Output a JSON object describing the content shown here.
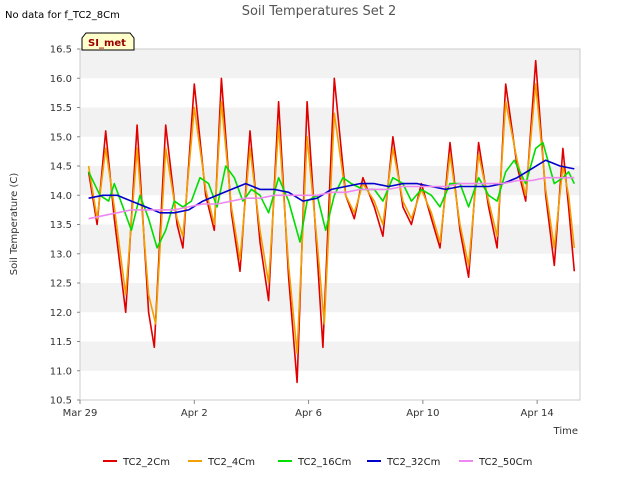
{
  "note": "No data for f_TC2_8Cm",
  "chart_data": {
    "type": "line",
    "title": "Soil Temperatures Set 2",
    "xlabel": "Time",
    "ylabel": "Soil Temperature (C)",
    "badge": "SI_met",
    "ylim": [
      10.5,
      16.5
    ],
    "yticks": [
      "10.5",
      "11.0",
      "11.5",
      "12.0",
      "12.5",
      "13.0",
      "13.5",
      "14.0",
      "14.5",
      "15.0",
      "15.5",
      "16.0",
      "16.5"
    ],
    "x_range_days": [
      0,
      17.5
    ],
    "xticks": [
      {
        "day": 0,
        "label": "Mar 29"
      },
      {
        "day": 4,
        "label": "Apr 2"
      },
      {
        "day": 8,
        "label": "Apr 6"
      },
      {
        "day": 12,
        "label": "Apr 10"
      },
      {
        "day": 16,
        "label": "Apr 14"
      }
    ],
    "grid": "horizontal bands",
    "legend_position": "bottom",
    "series": [
      {
        "name": "TC2_2Cm",
        "color": "#e00000",
        "points": [
          [
            0.3,
            14.4
          ],
          [
            0.6,
            13.5
          ],
          [
            0.9,
            15.1
          ],
          [
            1.2,
            13.6
          ],
          [
            1.6,
            12.0
          ],
          [
            2.0,
            15.2
          ],
          [
            2.4,
            12.0
          ],
          [
            2.6,
            11.4
          ],
          [
            3.0,
            15.2
          ],
          [
            3.4,
            13.5
          ],
          [
            3.6,
            13.1
          ],
          [
            4.0,
            15.9
          ],
          [
            4.4,
            14.0
          ],
          [
            4.7,
            13.4
          ],
          [
            4.95,
            16.0
          ],
          [
            5.3,
            13.7
          ],
          [
            5.6,
            12.7
          ],
          [
            5.95,
            15.1
          ],
          [
            6.3,
            13.2
          ],
          [
            6.6,
            12.2
          ],
          [
            6.95,
            15.6
          ],
          [
            7.3,
            12.6
          ],
          [
            7.6,
            10.8
          ],
          [
            7.95,
            15.6
          ],
          [
            8.3,
            13.0
          ],
          [
            8.5,
            11.4
          ],
          [
            8.9,
            16.0
          ],
          [
            9.3,
            14.0
          ],
          [
            9.6,
            13.6
          ],
          [
            9.9,
            14.3
          ],
          [
            10.3,
            13.8
          ],
          [
            10.6,
            13.3
          ],
          [
            10.95,
            15.0
          ],
          [
            11.3,
            13.8
          ],
          [
            11.6,
            13.5
          ],
          [
            11.95,
            14.2
          ],
          [
            12.3,
            13.6
          ],
          [
            12.6,
            13.1
          ],
          [
            12.95,
            14.9
          ],
          [
            13.3,
            13.4
          ],
          [
            13.6,
            12.6
          ],
          [
            13.95,
            14.9
          ],
          [
            14.3,
            13.8
          ],
          [
            14.6,
            13.1
          ],
          [
            14.9,
            15.9
          ],
          [
            15.3,
            14.5
          ],
          [
            15.6,
            13.9
          ],
          [
            15.95,
            16.3
          ],
          [
            16.3,
            14.0
          ],
          [
            16.6,
            12.8
          ],
          [
            16.9,
            14.8
          ],
          [
            17.1,
            13.8
          ],
          [
            17.3,
            12.7
          ]
        ]
      },
      {
        "name": "TC2_4Cm",
        "color": "#f0a000",
        "points": [
          [
            0.3,
            14.5
          ],
          [
            0.6,
            13.6
          ],
          [
            0.9,
            14.8
          ],
          [
            1.2,
            13.8
          ],
          [
            1.6,
            12.3
          ],
          [
            2.0,
            14.8
          ],
          [
            2.4,
            12.3
          ],
          [
            2.65,
            11.8
          ],
          [
            3.0,
            14.8
          ],
          [
            3.4,
            13.6
          ],
          [
            3.6,
            13.3
          ],
          [
            4.0,
            15.5
          ],
          [
            4.4,
            14.1
          ],
          [
            4.7,
            13.5
          ],
          [
            4.95,
            15.6
          ],
          [
            5.3,
            13.8
          ],
          [
            5.6,
            12.9
          ],
          [
            5.95,
            14.8
          ],
          [
            6.3,
            13.4
          ],
          [
            6.6,
            12.5
          ],
          [
            6.95,
            15.2
          ],
          [
            7.3,
            12.8
          ],
          [
            7.6,
            11.3
          ],
          [
            7.95,
            15.0
          ],
          [
            8.3,
            13.2
          ],
          [
            8.55,
            11.8
          ],
          [
            8.9,
            15.4
          ],
          [
            9.3,
            14.0
          ],
          [
            9.6,
            13.7
          ],
          [
            9.9,
            14.2
          ],
          [
            10.3,
            13.9
          ],
          [
            10.6,
            13.5
          ],
          [
            10.95,
            14.8
          ],
          [
            11.3,
            13.9
          ],
          [
            11.6,
            13.6
          ],
          [
            11.95,
            14.1
          ],
          [
            12.3,
            13.7
          ],
          [
            12.6,
            13.2
          ],
          [
            12.95,
            14.7
          ],
          [
            13.3,
            13.5
          ],
          [
            13.6,
            12.8
          ],
          [
            13.95,
            14.7
          ],
          [
            14.3,
            13.9
          ],
          [
            14.6,
            13.3
          ],
          [
            14.9,
            15.6
          ],
          [
            15.3,
            14.6
          ],
          [
            15.6,
            14.0
          ],
          [
            15.95,
            15.9
          ],
          [
            16.3,
            14.1
          ],
          [
            16.6,
            13.1
          ],
          [
            16.9,
            14.5
          ],
          [
            17.1,
            14.0
          ],
          [
            17.3,
            13.1
          ]
        ]
      },
      {
        "name": "TC2_16Cm",
        "color": "#00dd00",
        "points": [
          [
            0.3,
            14.4
          ],
          [
            0.7,
            14.0
          ],
          [
            1.0,
            13.9
          ],
          [
            1.2,
            14.2
          ],
          [
            1.5,
            13.8
          ],
          [
            1.8,
            13.4
          ],
          [
            2.1,
            14.0
          ],
          [
            2.4,
            13.6
          ],
          [
            2.7,
            13.1
          ],
          [
            3.0,
            13.4
          ],
          [
            3.3,
            13.9
          ],
          [
            3.6,
            13.8
          ],
          [
            3.9,
            13.9
          ],
          [
            4.2,
            14.3
          ],
          [
            4.5,
            14.2
          ],
          [
            4.8,
            13.8
          ],
          [
            5.1,
            14.5
          ],
          [
            5.4,
            14.3
          ],
          [
            5.7,
            13.9
          ],
          [
            6.0,
            14.1
          ],
          [
            6.3,
            14.0
          ],
          [
            6.6,
            13.7
          ],
          [
            6.95,
            14.3
          ],
          [
            7.3,
            13.9
          ],
          [
            7.7,
            13.2
          ],
          [
            7.95,
            13.9
          ],
          [
            8.3,
            14.0
          ],
          [
            8.6,
            13.4
          ],
          [
            8.9,
            14.0
          ],
          [
            9.2,
            14.3
          ],
          [
            9.5,
            14.2
          ],
          [
            9.9,
            14.1
          ],
          [
            10.3,
            14.1
          ],
          [
            10.6,
            13.9
          ],
          [
            10.95,
            14.3
          ],
          [
            11.3,
            14.2
          ],
          [
            11.6,
            13.9
          ],
          [
            11.95,
            14.1
          ],
          [
            12.3,
            14.0
          ],
          [
            12.6,
            13.8
          ],
          [
            12.95,
            14.2
          ],
          [
            13.3,
            14.2
          ],
          [
            13.6,
            13.8
          ],
          [
            13.95,
            14.3
          ],
          [
            14.3,
            14.0
          ],
          [
            14.6,
            13.9
          ],
          [
            14.9,
            14.4
          ],
          [
            15.2,
            14.6
          ],
          [
            15.6,
            14.2
          ],
          [
            15.95,
            14.8
          ],
          [
            16.2,
            14.9
          ],
          [
            16.6,
            14.2
          ],
          [
            16.9,
            14.3
          ],
          [
            17.1,
            14.4
          ],
          [
            17.3,
            14.2
          ]
        ]
      },
      {
        "name": "TC2_32Cm",
        "color": "#0000cc",
        "points": [
          [
            0.3,
            13.95
          ],
          [
            0.8,
            14.0
          ],
          [
            1.3,
            14.0
          ],
          [
            1.8,
            13.9
          ],
          [
            2.3,
            13.8
          ],
          [
            2.8,
            13.7
          ],
          [
            3.3,
            13.7
          ],
          [
            3.8,
            13.75
          ],
          [
            4.3,
            13.9
          ],
          [
            4.8,
            14.0
          ],
          [
            5.3,
            14.1
          ],
          [
            5.8,
            14.2
          ],
          [
            6.3,
            14.1
          ],
          [
            6.8,
            14.1
          ],
          [
            7.3,
            14.05
          ],
          [
            7.8,
            13.9
          ],
          [
            8.3,
            13.95
          ],
          [
            8.8,
            14.1
          ],
          [
            9.3,
            14.15
          ],
          [
            9.8,
            14.2
          ],
          [
            10.3,
            14.2
          ],
          [
            10.8,
            14.15
          ],
          [
            11.3,
            14.2
          ],
          [
            11.8,
            14.2
          ],
          [
            12.3,
            14.15
          ],
          [
            12.8,
            14.1
          ],
          [
            13.3,
            14.15
          ],
          [
            13.8,
            14.15
          ],
          [
            14.3,
            14.15
          ],
          [
            14.8,
            14.2
          ],
          [
            15.3,
            14.3
          ],
          [
            15.8,
            14.45
          ],
          [
            16.3,
            14.6
          ],
          [
            16.8,
            14.5
          ],
          [
            17.3,
            14.45
          ]
        ]
      },
      {
        "name": "TC2_50Cm",
        "color": "#ee88ee",
        "points": [
          [
            0.3,
            13.6
          ],
          [
            0.8,
            13.65
          ],
          [
            1.3,
            13.7
          ],
          [
            1.8,
            13.75
          ],
          [
            2.3,
            13.75
          ],
          [
            2.8,
            13.75
          ],
          [
            3.3,
            13.75
          ],
          [
            3.8,
            13.8
          ],
          [
            4.3,
            13.85
          ],
          [
            4.8,
            13.85
          ],
          [
            5.3,
            13.9
          ],
          [
            5.8,
            13.95
          ],
          [
            6.3,
            13.95
          ],
          [
            6.8,
            14.0
          ],
          [
            7.3,
            14.0
          ],
          [
            7.8,
            14.0
          ],
          [
            8.3,
            14.0
          ],
          [
            8.8,
            14.05
          ],
          [
            9.3,
            14.05
          ],
          [
            9.8,
            14.1
          ],
          [
            10.3,
            14.1
          ],
          [
            10.8,
            14.1
          ],
          [
            11.3,
            14.15
          ],
          [
            11.8,
            14.15
          ],
          [
            12.3,
            14.15
          ],
          [
            12.8,
            14.15
          ],
          [
            13.3,
            14.2
          ],
          [
            13.8,
            14.2
          ],
          [
            14.3,
            14.2
          ],
          [
            14.8,
            14.2
          ],
          [
            15.3,
            14.25
          ],
          [
            15.8,
            14.25
          ],
          [
            16.3,
            14.3
          ],
          [
            16.8,
            14.3
          ],
          [
            17.3,
            14.3
          ]
        ]
      }
    ]
  }
}
